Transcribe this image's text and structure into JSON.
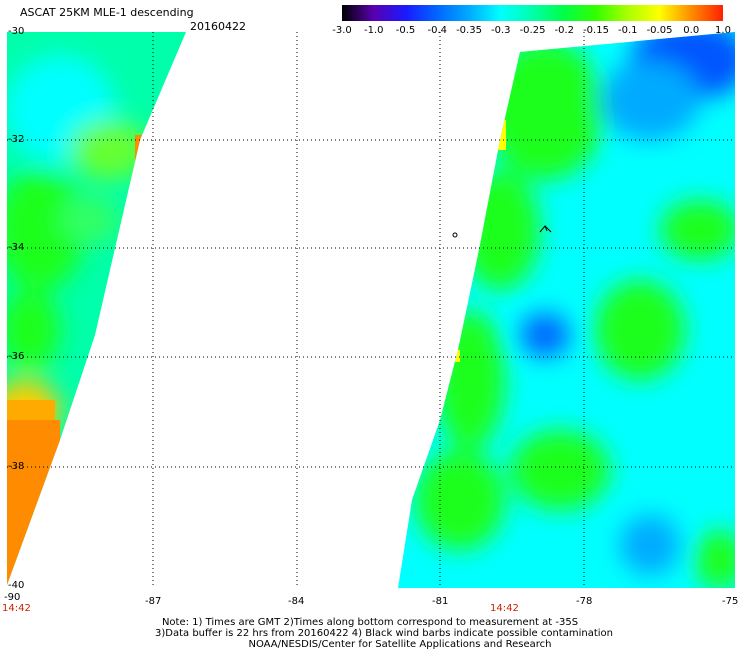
{
  "header": {
    "title": "ASCAT 25KM MLE-1 descending",
    "date": "20160422"
  },
  "colorbar": {
    "ticks": [
      "-3.0",
      "-1.0",
      "-0.5",
      "-0.4",
      "-0.35",
      "-0.3",
      "-0.25",
      "-0.2",
      "-0.15",
      "-0.1",
      "-0.05",
      "0.0",
      "1.0"
    ],
    "colors": [
      "#000000",
      "#5a00b0",
      "#1a1aff",
      "#0066ff",
      "#00aaff",
      "#00ffff",
      "#00ffaa",
      "#00ff44",
      "#33ff00",
      "#aaff00",
      "#ffff00",
      "#ff8c00",
      "#ff2000"
    ]
  },
  "axes": {
    "lon_labels": [
      "-90",
      "-87",
      "-84",
      "-81",
      "-78",
      "-75"
    ],
    "lat_labels": [
      "-30",
      "-32",
      "-34",
      "-36",
      "-38",
      "-40"
    ],
    "lon_range": [
      -90,
      -75
    ],
    "lat_range": [
      -30,
      -40
    ]
  },
  "swaths": {
    "west_time": "14:42",
    "east_time": "14:42"
  },
  "colors": {
    "cyan": "#00ffff",
    "green": "#1aff1a",
    "light_green": "#33ff66",
    "blue": "#0055ff",
    "yellow": "#ffff00",
    "orange": "#ff8c00",
    "time_label": "#cc2200"
  },
  "notes": {
    "line1": "Note: 1) Times are GMT 2)Times along bottom correspond to measurement at -35S",
    "line2": "3)Data buffer is 22 hrs from 20160422 4) Black wind barbs indicate possible contamination",
    "line3": "NOAA/NESDIS/Center for Satellite Applications and Research"
  }
}
